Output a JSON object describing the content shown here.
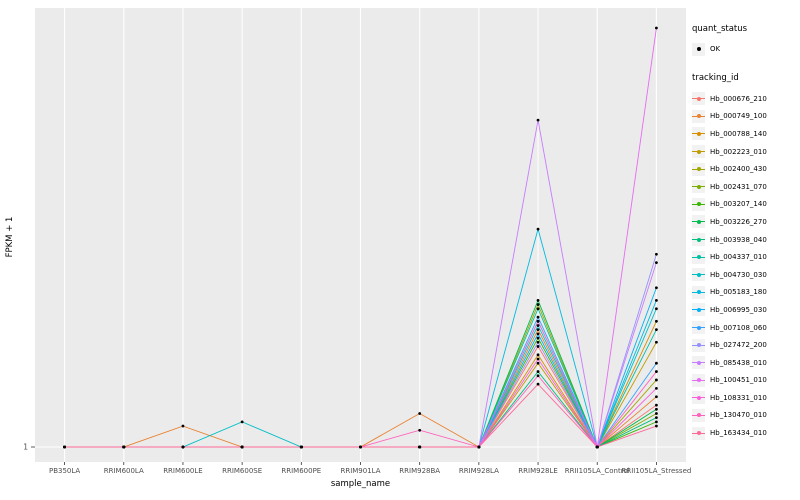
{
  "chart": {
    "panel_bg": "#EBEBEB",
    "gridline_color": "#FFFFFF",
    "point_color": "#000000",
    "tick_color": "#333333",
    "tick_label_color": "#4D4D4D",
    "axis_title_color": "#000000",
    "y_tick_label": "1"
  },
  "legend": {
    "quant_status_title": "quant_status",
    "quant_status_items": [
      {
        "label": "OK",
        "symbol": "point",
        "color": "#000000"
      }
    ],
    "tracking_id_title": "tracking_id"
  },
  "chart_data": {
    "type": "line",
    "title": "",
    "xlabel": "sample_name",
    "ylabel": "FPKM + 1",
    "x": [
      "PB350LA",
      "RRIM600LA",
      "RRIM600LE",
      "RRIM600SE",
      "RRIM600PE",
      "RRIM901LA",
      "RRIM928BA",
      "RRIM928LA",
      "RRIM928LE",
      "RRII105LA_Control",
      "RRII105LA_Stressed"
    ],
    "y_axis_note": "log-like axis; only visible tick label is 1 at the baseline; series values below are relative heights (0 = baseline 1, 1 = panel top)",
    "ylim": [
      0,
      1
    ],
    "grid": true,
    "legend_position": "right",
    "marker": "point",
    "series": [
      {
        "name": "Hb_000676_210",
        "color": "#F8766D",
        "values": [
          0,
          0,
          0,
          0,
          0,
          0,
          0,
          0,
          0.24,
          0,
          0.1
        ]
      },
      {
        "name": "Hb_000749_100",
        "color": "#EA8331",
        "values": [
          0,
          0,
          0.05,
          0,
          0,
          0,
          0.08,
          0,
          0.28,
          0,
          0.12
        ]
      },
      {
        "name": "Hb_000788_140",
        "color": "#D89000",
        "values": [
          0,
          0,
          0,
          0,
          0,
          0,
          0,
          0,
          0.22,
          0,
          0.3
        ]
      },
      {
        "name": "Hb_002223_010",
        "color": "#C09B00",
        "values": [
          0,
          0,
          0,
          0,
          0,
          0,
          0,
          0,
          0.2,
          0,
          0.25
        ]
      },
      {
        "name": "Hb_002400_430",
        "color": "#A3A500",
        "values": [
          0,
          0,
          0,
          0,
          0,
          0,
          0,
          0,
          0.34,
          0,
          0.16
        ]
      },
      {
        "name": "Hb_002431_070",
        "color": "#7CAE00",
        "values": [
          0,
          0,
          0,
          0,
          0,
          0,
          0,
          0,
          0.3,
          0,
          0.08
        ]
      },
      {
        "name": "Hb_003207_140",
        "color": "#39B600",
        "values": [
          0,
          0,
          0,
          0,
          0,
          0,
          0,
          0,
          0.26,
          0,
          0.06
        ]
      },
      {
        "name": "Hb_003226_270",
        "color": "#00BB4E",
        "values": [
          0,
          0,
          0,
          0,
          0,
          0,
          0,
          0,
          0.35,
          0,
          0.09
        ]
      },
      {
        "name": "Hb_003938_040",
        "color": "#00BF7D",
        "values": [
          0,
          0,
          0,
          0,
          0,
          0,
          0,
          0,
          0.18,
          0,
          0.07
        ]
      },
      {
        "name": "Hb_004337_010",
        "color": "#00C1A3",
        "values": [
          0,
          0,
          0,
          0,
          0,
          0,
          0,
          0,
          0.33,
          0,
          0.28
        ]
      },
      {
        "name": "Hb_004730_030",
        "color": "#00BFC4",
        "values": [
          0,
          0,
          0,
          0.06,
          0,
          0,
          0,
          0,
          0.29,
          0,
          0.33
        ]
      },
      {
        "name": "Hb_005183_180",
        "color": "#00BAE0",
        "values": [
          0,
          0,
          0,
          0,
          0,
          0,
          0,
          0,
          0.52,
          0,
          0.35
        ]
      },
      {
        "name": "Hb_006995_030",
        "color": "#00B0F6",
        "values": [
          0,
          0,
          0,
          0,
          0,
          0,
          0,
          0,
          0.27,
          0,
          0.38
        ]
      },
      {
        "name": "Hb_007108_060",
        "color": "#35A2FF",
        "values": [
          0,
          0,
          0,
          0,
          0,
          0,
          0,
          0,
          0.31,
          0,
          0.2
        ]
      },
      {
        "name": "Hb_027472_200",
        "color": "#9590FF",
        "values": [
          0,
          0,
          0,
          0,
          0,
          0,
          0,
          0,
          0.25,
          0,
          0.46
        ]
      },
      {
        "name": "Hb_085438_010",
        "color": "#C77CFF",
        "values": [
          0,
          0,
          0,
          0,
          0,
          0,
          0,
          0,
          0.78,
          0,
          0.44
        ]
      },
      {
        "name": "Hb_100451_010",
        "color": "#E76BF3",
        "values": [
          0,
          0,
          0,
          0,
          0,
          0,
          0,
          0,
          0.3,
          0,
          1.0
        ]
      },
      {
        "name": "Hb_108331_010",
        "color": "#FA62DB",
        "values": [
          0,
          0,
          0,
          0,
          0,
          0,
          0,
          0,
          0.21,
          0,
          0.14
        ]
      },
      {
        "name": "Hb_130470_010",
        "color": "#FF62BC",
        "values": [
          0,
          0,
          0,
          0,
          0,
          0,
          0.04,
          0,
          0.17,
          0,
          0.18
        ]
      },
      {
        "name": "Hb_163434_010",
        "color": "#FF6A98",
        "values": [
          0,
          0,
          0,
          0,
          0,
          0,
          0,
          0,
          0.15,
          0,
          0.05
        ]
      }
    ]
  }
}
